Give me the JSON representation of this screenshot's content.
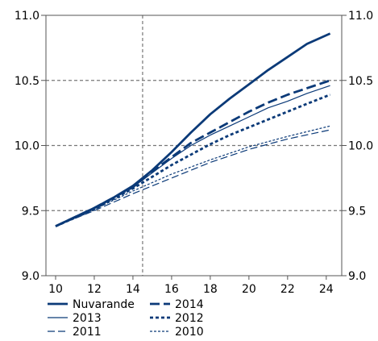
{
  "chart_data": {
    "type": "line",
    "title": "",
    "xlabel": "",
    "ylabel": "",
    "xlim": [
      9.5,
      24.8
    ],
    "ylim": [
      9.0,
      11.0
    ],
    "x_ticks": [
      "10",
      "12",
      "14",
      "16",
      "18",
      "20",
      "22",
      "24"
    ],
    "x_tick_values": [
      10,
      12,
      14,
      16,
      18,
      20,
      22,
      24
    ],
    "y_ticks": [
      "9.0",
      "9.5",
      "10.0",
      "10.5",
      "11.0"
    ],
    "y_tick_values": [
      9.0,
      9.5,
      10.0,
      10.5,
      11.0
    ],
    "grid": "dashed horizontal at each y tick; dashed vertical at x = 14.5",
    "highlight_x": 14.5,
    "legend_position": "bottom-left, two columns",
    "color": "#0b3a78",
    "series": [
      {
        "name": "Nuvarande",
        "style": "solid",
        "weight": "thick",
        "x": [
          10,
          11,
          12,
          13,
          14,
          15,
          16,
          17,
          18,
          19,
          20,
          21,
          22,
          23,
          24.2
        ],
        "y": [
          9.38,
          9.45,
          9.52,
          9.6,
          9.69,
          9.81,
          9.95,
          10.1,
          10.24,
          10.36,
          10.47,
          10.58,
          10.68,
          10.78,
          10.86
        ]
      },
      {
        "name": "2014",
        "style": "dashed",
        "weight": "thick",
        "x": [
          10,
          12,
          14,
          15,
          16,
          17,
          18,
          19,
          20,
          21,
          22,
          23,
          24.2
        ],
        "y": [
          9.38,
          9.52,
          9.68,
          9.8,
          9.91,
          10.02,
          10.1,
          10.18,
          10.26,
          10.33,
          10.39,
          10.44,
          10.5
        ]
      },
      {
        "name": "2013",
        "style": "solid",
        "weight": "thin",
        "x": [
          10,
          12,
          14,
          15,
          16,
          17,
          18,
          19,
          20,
          21,
          22,
          23,
          24.2
        ],
        "y": [
          9.38,
          9.52,
          9.68,
          9.79,
          9.9,
          10.0,
          10.08,
          10.15,
          10.22,
          10.29,
          10.34,
          10.4,
          10.46
        ]
      },
      {
        "name": "2012",
        "style": "dotted",
        "weight": "thick",
        "x": [
          10,
          12,
          14,
          15,
          16,
          17,
          18,
          19,
          20,
          21,
          22,
          23,
          24.2
        ],
        "y": [
          9.38,
          9.51,
          9.67,
          9.76,
          9.85,
          9.93,
          10.01,
          10.08,
          10.14,
          10.2,
          10.26,
          10.32,
          10.39
        ]
      },
      {
        "name": "2011",
        "style": "dashed",
        "weight": "thin",
        "x": [
          10,
          12,
          14,
          16,
          18,
          20,
          22,
          24.2
        ],
        "y": [
          9.38,
          9.5,
          9.63,
          9.75,
          9.87,
          9.97,
          10.05,
          10.12
        ]
      },
      {
        "name": "2010",
        "style": "dotted",
        "weight": "thin",
        "x": [
          10,
          12,
          14,
          16,
          18,
          20,
          22,
          24.2
        ],
        "y": [
          9.38,
          9.51,
          9.65,
          9.78,
          9.89,
          9.99,
          10.07,
          10.15
        ]
      }
    ],
    "legend": [
      [
        "Nuvarande",
        "2014"
      ],
      [
        "2013",
        "2012"
      ],
      [
        "2011",
        "2010"
      ]
    ]
  }
}
